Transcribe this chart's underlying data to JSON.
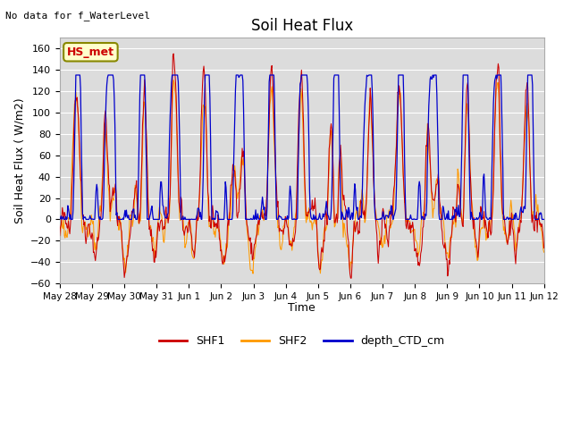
{
  "title": "Soil Heat Flux",
  "ylabel": "Soil Heat Flux ( W/m2)",
  "xlabel": "Time",
  "top_left_text": "No data for f_WaterLevel",
  "watermark": "HS_met",
  "ylim": [
    -60,
    170
  ],
  "yticks": [
    -60,
    -40,
    -20,
    0,
    20,
    40,
    60,
    80,
    100,
    120,
    140,
    160
  ],
  "xtick_labels": [
    "May 28",
    "May 29",
    "May 30",
    "May 31",
    "Jun 1",
    "Jun 2",
    "Jun 3",
    "Jun 4",
    "Jun 5",
    "Jun 6",
    "Jun 7",
    "Jun 8",
    "Jun 9",
    "Jun 10",
    "Jun 11",
    "Jun 12"
  ],
  "colors": {
    "SHF1": "#cc0000",
    "SHF2": "#ff9900",
    "depth_CTD_cm": "#0000cc",
    "background": "#dcdcdc",
    "watermark_bg": "#ffffcc",
    "watermark_border": "#888800",
    "watermark_text": "#cc0000"
  },
  "legend_labels": [
    "SHF1",
    "SHF2",
    "depth_CTD_cm"
  ]
}
